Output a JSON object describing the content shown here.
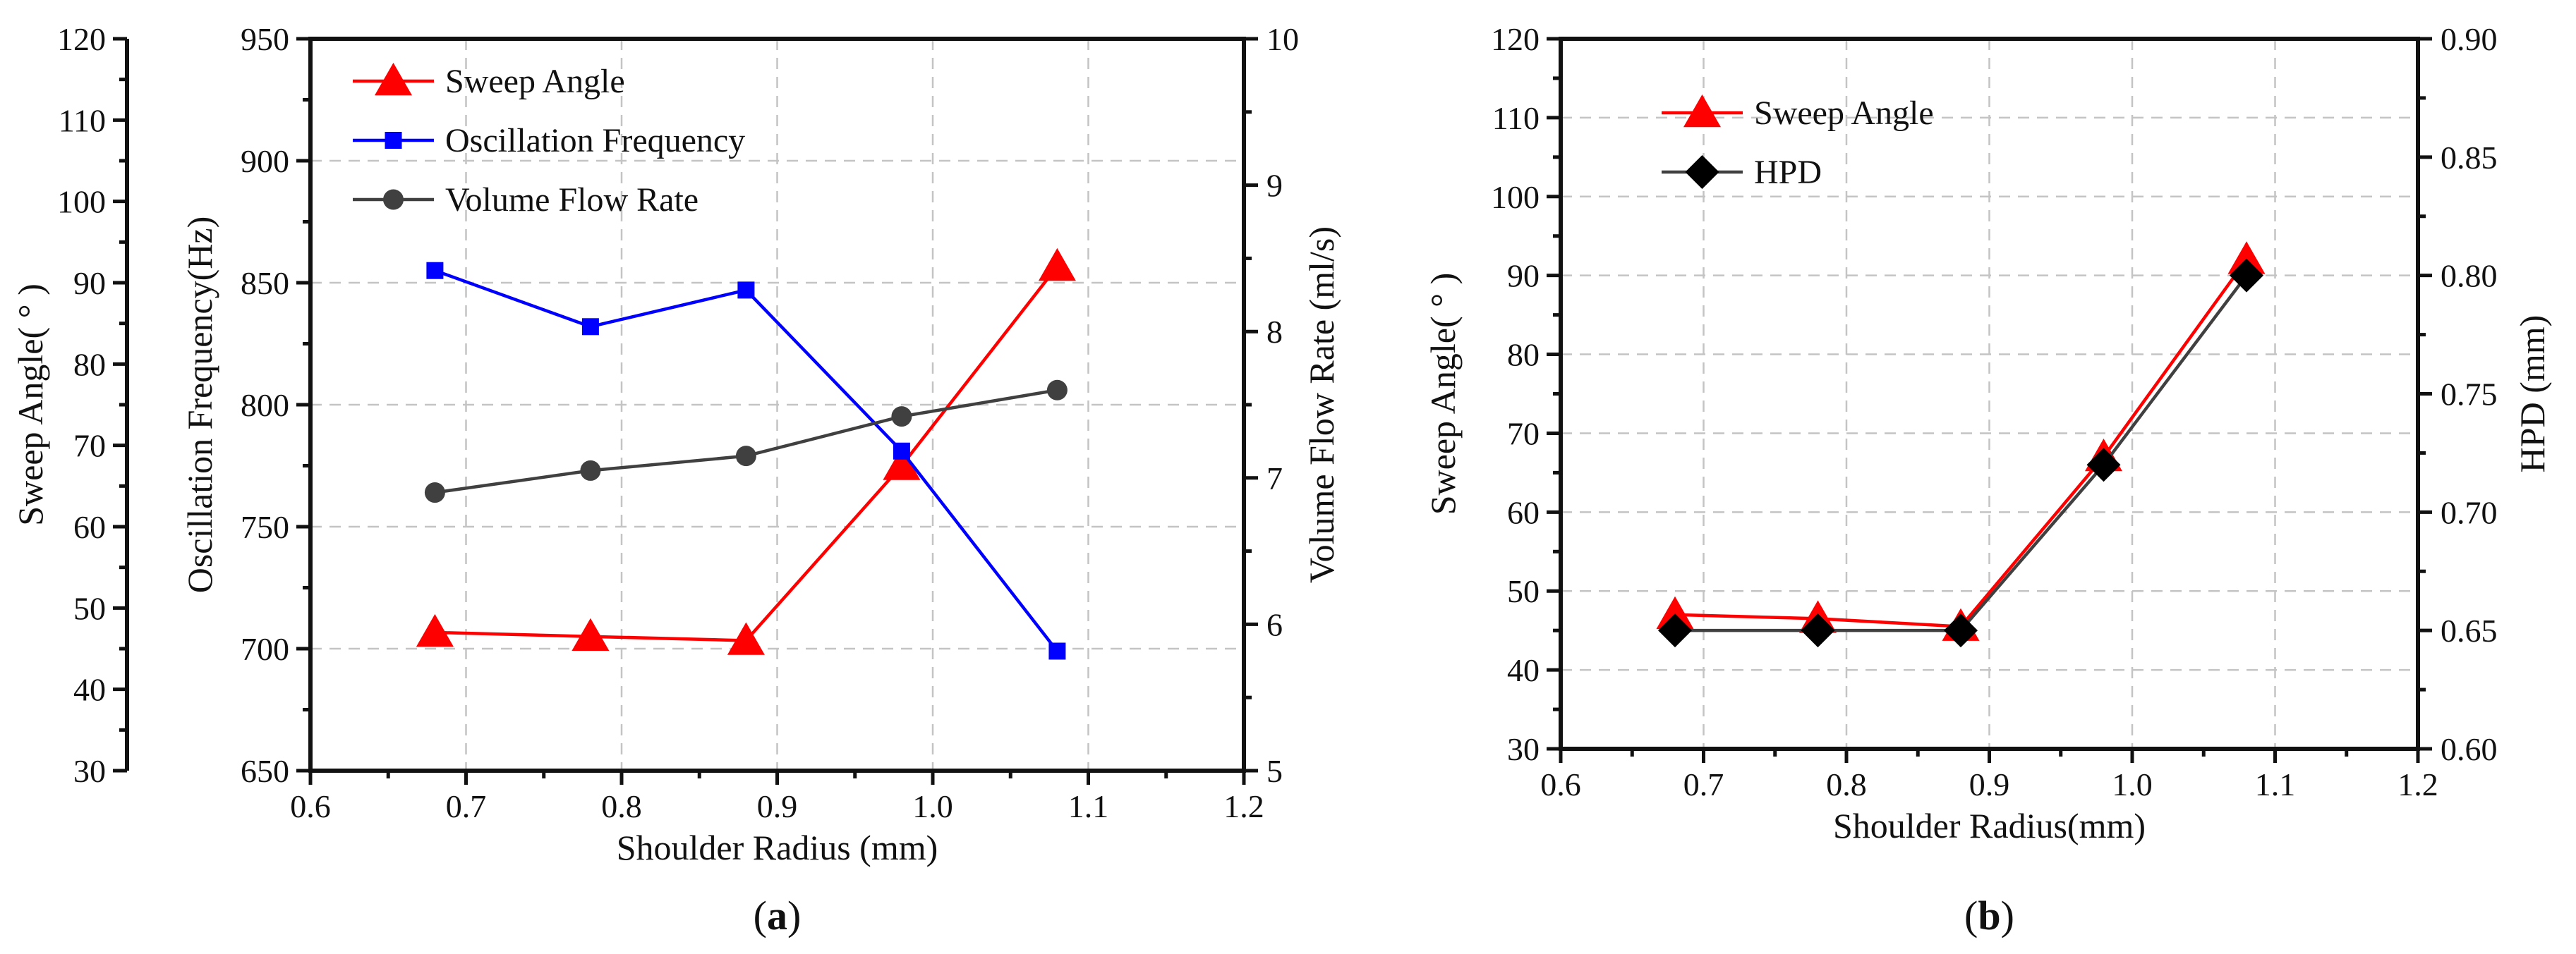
{
  "chart_data": [
    {
      "panel": "a",
      "type": "line",
      "panel_label": {
        "open": "(",
        "letter": "a",
        "close": ")"
      },
      "xlabel": "Shoulder Radius (mm)",
      "xlim": [
        0.6,
        1.2
      ],
      "xticks": [
        "0.6",
        "0.7",
        "0.8",
        "0.9",
        "1.0",
        "1.1",
        "1.2"
      ],
      "axes": {
        "sweep": {
          "label": "Sweep Angle( ° )",
          "lim": [
            30,
            120
          ],
          "ticks": [
            "30",
            "40",
            "50",
            "60",
            "70",
            "80",
            "90",
            "100",
            "110",
            "120"
          ],
          "position": "outer-left"
        },
        "freq": {
          "label": "Oscillation Frequency(Hz)",
          "lim": [
            650,
            950
          ],
          "ticks": [
            "650",
            "700",
            "750",
            "800",
            "850",
            "900",
            "950"
          ],
          "position": "left"
        },
        "flow": {
          "label": "Volume Flow Rate (ml/s)",
          "lim": [
            5,
            10
          ],
          "ticks": [
            "5",
            "6",
            "7",
            "8",
            "9",
            "10"
          ],
          "position": "right"
        }
      },
      "series": [
        {
          "name": "Sweep Angle",
          "axis": "sweep",
          "color": "#ff0000",
          "marker": "triangle",
          "x": [
            0.68,
            0.78,
            0.88,
            0.98,
            1.08
          ],
          "values": [
            47.0,
            46.5,
            46.0,
            67.5,
            92.0
          ]
        },
        {
          "name": "Oscillation Frequency",
          "axis": "freq",
          "color": "#0000ff",
          "marker": "square",
          "x": [
            0.68,
            0.78,
            0.88,
            0.98,
            1.08
          ],
          "values": [
            855,
            832,
            847,
            781,
            699
          ]
        },
        {
          "name": "Volume Flow Rate",
          "axis": "flow",
          "color": "#404040",
          "marker": "circle",
          "x": [
            0.68,
            0.78,
            0.88,
            0.98,
            1.08
          ],
          "values": [
            6.9,
            7.05,
            7.15,
            7.42,
            7.6
          ]
        }
      ],
      "legend": "top-left"
    },
    {
      "panel": "b",
      "type": "line",
      "panel_label": {
        "open": "(",
        "letter": "b",
        "close": ")"
      },
      "xlabel": "Shoulder Radius(mm)",
      "xlim": [
        0.6,
        1.2
      ],
      "xticks": [
        "0.6",
        "0.7",
        "0.8",
        "0.9",
        "1.0",
        "1.1",
        "1.2"
      ],
      "axes": {
        "sweep": {
          "label": "Sweep Angle( ° )",
          "lim": [
            30,
            120
          ],
          "ticks": [
            "30",
            "40",
            "50",
            "60",
            "70",
            "80",
            "90",
            "100",
            "110",
            "120"
          ],
          "position": "left"
        },
        "hpd": {
          "label": "HPD (mm)",
          "lim": [
            0.6,
            0.9
          ],
          "ticks": [
            "0.60",
            "0.65",
            "0.70",
            "0.75",
            "0.80",
            "0.85",
            "0.90"
          ],
          "position": "right"
        }
      },
      "series": [
        {
          "name": "Sweep Angle",
          "axis": "sweep",
          "color": "#ff0000",
          "marker": "triangle",
          "x": [
            0.68,
            0.78,
            0.88,
            0.98,
            1.08
          ],
          "values": [
            47.0,
            46.5,
            45.5,
            67.0,
            92.0
          ]
        },
        {
          "name": "HPD",
          "axis": "hpd",
          "color": "#404040",
          "marker": "diamond",
          "x": [
            0.68,
            0.78,
            0.88,
            0.98,
            1.08
          ],
          "values": [
            0.65,
            0.65,
            0.65,
            0.72,
            0.8
          ]
        }
      ],
      "legend": "top-left"
    }
  ]
}
